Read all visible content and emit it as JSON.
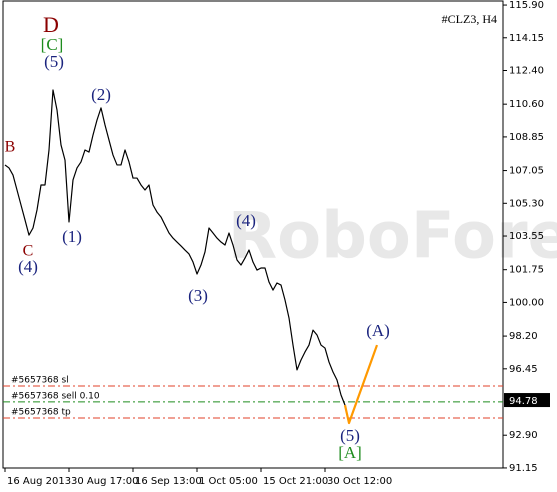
{
  "chart_data": {
    "type": "line",
    "title": "#CLZ3, H4",
    "watermark": "RoboForex",
    "categories": [
      "16 Aug 2013",
      null,
      null,
      null,
      null,
      null,
      null,
      null,
      null,
      null,
      null,
      null,
      null,
      null,
      null,
      null,
      "30 Aug 17:00",
      null,
      null,
      null,
      null,
      null,
      null,
      null,
      null,
      null,
      null,
      null,
      null,
      null,
      null,
      null,
      "16 Sep 13:00",
      null,
      null,
      null,
      null,
      null,
      null,
      null,
      null,
      null,
      null,
      null,
      null,
      null,
      null,
      null,
      "1 Oct 05:00",
      null,
      null,
      null,
      null,
      null,
      null,
      null,
      null,
      null,
      null,
      null,
      null,
      null,
      null,
      null,
      "15 Oct 21:00",
      null,
      null,
      null,
      null,
      null,
      null,
      null,
      null,
      null,
      null,
      null,
      null,
      null,
      null,
      null,
      "30 Oct 12:00",
      null,
      null,
      null,
      null,
      null,
      null,
      null,
      null,
      null,
      null,
      null,
      null,
      null
    ],
    "series": [
      {
        "color": "#000000",
        "values": [
          107.35,
          107.19,
          106.81,
          106.01,
          105.21,
          104.41,
          103.6,
          103.98,
          104.94,
          106.28,
          106.28,
          108.15,
          111.36,
          110.29,
          108.42,
          107.61,
          104.3,
          106.55,
          107.19,
          107.51,
          108.15,
          108.04,
          108.95,
          109.75,
          110.4,
          109.49,
          108.68,
          107.88,
          107.35,
          107.35,
          108.15,
          107.51,
          106.65,
          106.65,
          106.28,
          106.01,
          106.28,
          105.21,
          104.83,
          104.57,
          104.14,
          103.71,
          103.44,
          103.23,
          103.02,
          102.8,
          102.59,
          102.16,
          101.52,
          102.0,
          102.7,
          103.98,
          103.71,
          103.44,
          103.23,
          103.07,
          103.71,
          103.07,
          102.27,
          102.0,
          102.37,
          102.8,
          102.16,
          101.73,
          101.84,
          101.84,
          101.09,
          100.66,
          101.04,
          100.93,
          100.13,
          99.17,
          97.72,
          96.39,
          96.92,
          97.35,
          97.72,
          98.52,
          98.26,
          97.72,
          97.56,
          96.81,
          96.28,
          95.85,
          95.05,
          94.51,
          null,
          null,
          null,
          null,
          null,
          null,
          null,
          null
        ]
      },
      {
        "color": "#ff9900",
        "values": [
          null,
          null,
          null,
          null,
          null,
          null,
          null,
          null,
          null,
          null,
          null,
          null,
          null,
          null,
          null,
          null,
          null,
          null,
          null,
          null,
          null,
          null,
          null,
          null,
          null,
          null,
          null,
          null,
          null,
          null,
          null,
          null,
          null,
          null,
          null,
          null,
          null,
          null,
          null,
          null,
          null,
          null,
          null,
          null,
          null,
          null,
          null,
          null,
          null,
          null,
          null,
          null,
          null,
          null,
          null,
          null,
          null,
          null,
          null,
          null,
          null,
          null,
          null,
          null,
          null,
          null,
          null,
          null,
          null,
          null,
          null,
          null,
          null,
          null,
          null,
          null,
          null,
          null,
          null,
          null,
          null,
          null,
          null,
          null,
          null,
          94.51,
          93.55,
          94.15,
          94.74,
          95.34,
          95.93,
          96.53,
          97.12,
          97.72
        ]
      }
    ],
    "ylim": [
      91.04,
      116.17
    ],
    "yticks": [
      {
        "value": 115.9,
        "label": "115.90"
      },
      114.15,
      {
        "value": 112.4,
        "label": "112.40"
      },
      {
        "value": 110.6,
        "label": "110.60"
      },
      108.85,
      107.05,
      {
        "value": 105.3,
        "label": "105.30"
      },
      103.55,
      101.75,
      {
        "value": 100,
        "label": "100.00"
      },
      {
        "value": 98.2,
        "label": "98.20"
      },
      96.45,
      {
        "value": 92.9,
        "label": "92.90"
      },
      91.15
    ],
    "last_price": 94.78,
    "levels": [
      {
        "label": "#5657368 sl",
        "value": 95.53,
        "color": "#e0402a"
      },
      {
        "label": "#5657368 sell 0.10",
        "value": 94.68,
        "color": "#1e8c1e"
      },
      {
        "label": "#5657368 tp",
        "value": 93.82,
        "color": "#e0402a"
      }
    ],
    "annotations": [
      {
        "text": "D",
        "color": "#8b0000"
      },
      {
        "text": "[C]",
        "color": "#1e8c1e"
      },
      {
        "text": "(5)",
        "color": "#1a237e"
      },
      {
        "text": "(2)",
        "color": "#1a237e"
      },
      {
        "text": "B",
        "color": "#8b0000"
      },
      {
        "text": "C",
        "color": "#8b0000"
      },
      {
        "text": "(4)",
        "color": "#1a237e"
      },
      {
        "text": "(1)",
        "color": "#1a237e"
      },
      {
        "text": "(3)",
        "color": "#1a237e"
      },
      {
        "text": "(4)",
        "color": "#1a237e"
      },
      {
        "text": "(A)",
        "color": "#1a237e"
      },
      {
        "text": "(5)",
        "color": "#1a237e"
      },
      {
        "text": "[A]",
        "color": "#1e8c1e"
      }
    ]
  }
}
